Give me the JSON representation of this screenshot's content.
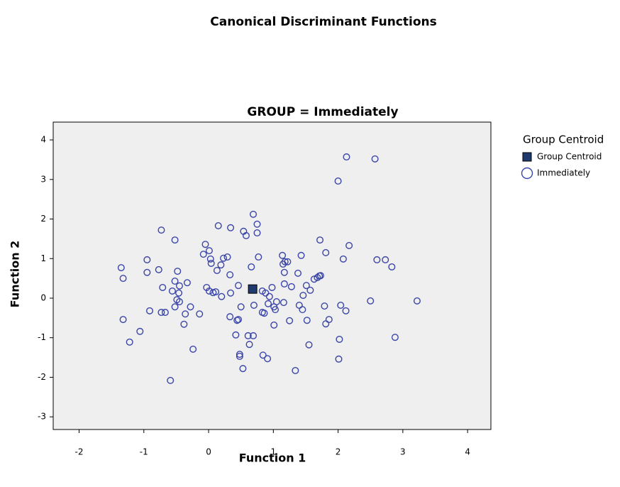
{
  "chart_data": {
    "type": "scatter",
    "title": "Canonical Discriminant Functions",
    "subtitle": "GROUP = Immediately",
    "x_label": "Function 1",
    "y_label": "Function 2",
    "legend_title": "Group Centroid",
    "xlim": [
      -2.4,
      4.36
    ],
    "ylim": [
      -3.32,
      4.45
    ],
    "xticks": [
      -2,
      -1,
      0,
      1,
      2,
      3,
      4
    ],
    "yticks": [
      -3,
      -2,
      -1,
      0,
      1,
      2,
      3,
      4
    ],
    "background": "#efefef",
    "series": [
      {
        "name": "Group Centroid",
        "marker": "square",
        "color": "#1f3b6e",
        "x": [
          0.68
        ],
        "y": [
          0.23
        ]
      },
      {
        "name": "Immediately",
        "marker": "circle",
        "color": "#3a45a8",
        "x": [
          2.13,
          2.57,
          2.0,
          0.69,
          -0.73,
          0.15,
          0.34,
          0.54,
          0.58,
          0.75,
          0.75,
          -0.52,
          1.72,
          2.17,
          -0.05,
          0.01,
          -0.08,
          0.03,
          0.04,
          0.23,
          0.29,
          0.19,
          0.13,
          0.33,
          0.77,
          0.66,
          1.14,
          1.43,
          1.81,
          2.08,
          1.18,
          1.22,
          1.15,
          1.17,
          1.38,
          1.17,
          1.71,
          1.73,
          1.68,
          1.63,
          2.6,
          2.73,
          2.83,
          -0.95,
          -0.95,
          -0.77,
          -0.48,
          -1.35,
          -1.32,
          -0.71,
          -0.56,
          -0.52,
          -0.45,
          -0.33,
          -0.46,
          -0.49,
          -0.45,
          -0.03,
          0.01,
          0.07,
          0.11,
          0.2,
          0.34,
          0.46,
          0.83,
          0.88,
          0.94,
          0.98,
          0.92,
          0.7,
          0.5,
          1.05,
          1.03,
          1.01,
          1.16,
          1.4,
          1.45,
          1.28,
          1.46,
          1.57,
          1.51,
          1.79,
          2.04,
          2.12,
          2.5,
          3.22,
          -0.52,
          -0.28,
          -0.14,
          -0.36,
          -0.91,
          -0.73,
          -0.67,
          -1.32,
          -1.06,
          -1.22,
          -0.38,
          -0.24,
          -0.59,
          0.33,
          0.46,
          0.44,
          0.83,
          0.86,
          1.01,
          1.25,
          1.52,
          1.86,
          1.81,
          0.61,
          0.69,
          0.42,
          0.63,
          1.55,
          2.02,
          2.88,
          0.48,
          0.48,
          0.84,
          0.91,
          0.53,
          1.34,
          2.01
        ],
        "y": [
          3.57,
          3.52,
          2.96,
          2.12,
          1.72,
          1.83,
          1.78,
          1.69,
          1.58,
          1.87,
          1.65,
          1.47,
          1.47,
          1.33,
          1.36,
          1.2,
          1.11,
          0.99,
          0.88,
          1.01,
          1.04,
          0.84,
          0.7,
          0.59,
          1.04,
          0.79,
          1.08,
          1.08,
          1.15,
          0.99,
          0.92,
          0.92,
          0.86,
          0.65,
          0.63,
          0.36,
          0.56,
          0.57,
          0.52,
          0.48,
          0.97,
          0.97,
          0.79,
          0.97,
          0.65,
          0.72,
          0.68,
          0.77,
          0.5,
          0.27,
          0.18,
          0.43,
          0.31,
          0.39,
          0.13,
          -0.04,
          -0.09,
          0.27,
          0.18,
          0.14,
          0.16,
          0.04,
          0.13,
          0.32,
          0.18,
          0.13,
          0.04,
          0.27,
          -0.14,
          -0.18,
          -0.22,
          -0.09,
          -0.29,
          -0.22,
          -0.11,
          -0.18,
          -0.29,
          0.29,
          0.07,
          0.2,
          0.32,
          -0.2,
          -0.18,
          -0.32,
          -0.07,
          -0.07,
          -0.22,
          -0.22,
          -0.4,
          -0.4,
          -0.32,
          -0.36,
          -0.36,
          -0.54,
          -0.84,
          -1.11,
          -0.66,
          -1.29,
          -2.08,
          -0.47,
          -0.54,
          -0.56,
          -0.36,
          -0.38,
          -0.68,
          -0.57,
          -0.56,
          -0.54,
          -0.65,
          -0.95,
          -0.95,
          -0.93,
          -1.17,
          -1.18,
          -1.04,
          -0.99,
          -1.42,
          -1.47,
          -1.44,
          -1.53,
          -1.78,
          -1.83,
          -1.54
        ]
      }
    ]
  }
}
